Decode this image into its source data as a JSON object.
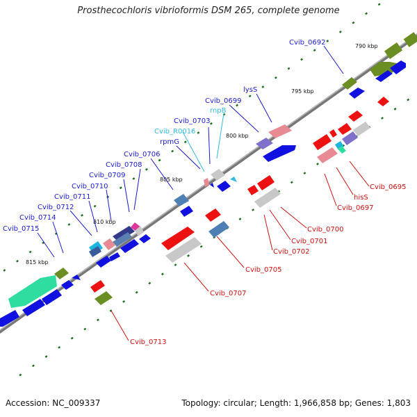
{
  "title": "Prosthecochloris vibrioformis DSM 265, complete genome",
  "accession": "Accession: NC_009337",
  "topology": "Topology: circular; Length: 1,966,858 bp; Genes: 1,803",
  "colors": {
    "forward_label": "#1a1acc",
    "rna_label": "#33bbdd",
    "reverse_label": "#cc1111",
    "forward_arrow": "#1010e0",
    "reverse_arrow": "#ee1111",
    "backbone": "#777777",
    "tick": "#1f6e1f"
  },
  "kbp_markers": [
    "790 kbp",
    "795 kbp",
    "800 kbp",
    "805 kbp",
    "810 kbp",
    "815 kbp"
  ],
  "forward_labels": [
    "Cvib_0692",
    "lysS",
    "Cvib_0699",
    "rnpB",
    "Cvib_0703",
    "Cvib_R0016",
    "rpmG",
    "Cvib_0706",
    "Cvib_0708",
    "Cvib_0709",
    "Cvib_0710",
    "Cvib_0711",
    "Cvib_0712",
    "Cvib_0714",
    "Cvib_0715"
  ],
  "reverse_labels": [
    "Cvib_0695",
    "hisS",
    "Cvib_0697",
    "Cvib_0700",
    "Cvib_0701",
    "Cvib_0702",
    "Cvib_0705",
    "Cvib_0707",
    "Cvib_0713"
  ]
}
